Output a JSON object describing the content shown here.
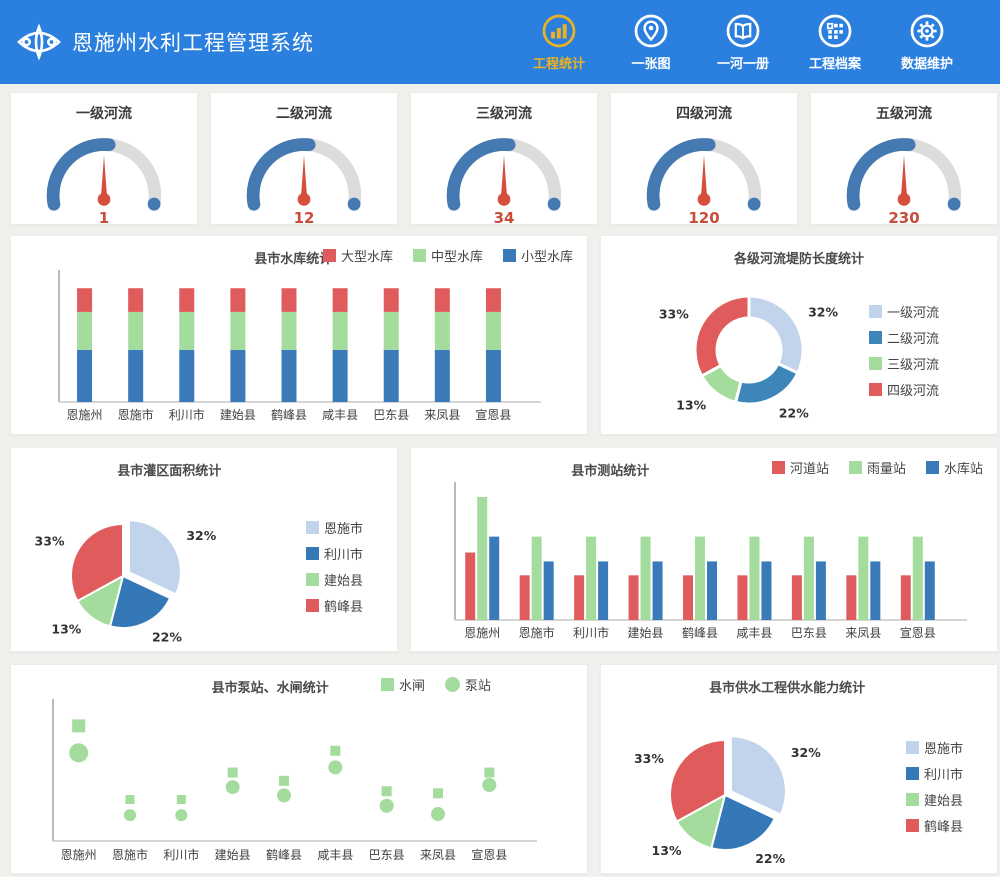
{
  "header": {
    "title": "恩施州水利工程管理系统",
    "nav": [
      {
        "label": "工程统计",
        "icon": "bar-chart-icon",
        "active": true
      },
      {
        "label": "一张图",
        "icon": "map-pin-icon",
        "active": false
      },
      {
        "label": "一河一册",
        "icon": "book-icon",
        "active": false
      },
      {
        "label": "工程档案",
        "icon": "archive-grid-icon",
        "active": false
      },
      {
        "label": "数据维护",
        "icon": "gear-icon",
        "active": false
      }
    ]
  },
  "colors": {
    "header_blue": "#2b80df",
    "active_gold": "#ecb21f",
    "red": "#e05c5c",
    "green": "#a3dc9c",
    "blue": "#3a7ab8",
    "light_blue": "#c1d4ec",
    "donut_blue": "#3e86ba",
    "gauge_blue": "#4479b2",
    "gauge_gray": "#dcdcdc",
    "needle_red": "#d5503c",
    "value_red": "#c94d39"
  },
  "gauges": {
    "fill_pct": 53,
    "items": [
      {
        "title": "一级河流",
        "value": "1"
      },
      {
        "title": "二级河流",
        "value": "12"
      },
      {
        "title": "三级河流",
        "value": "34"
      },
      {
        "title": "四级河流",
        "value": "120"
      },
      {
        "title": "五级河流",
        "value": "230"
      }
    ]
  },
  "chart_data": [
    {
      "type": "bar",
      "stacked": true,
      "title": "县市水库统计",
      "categories": [
        "恩施州",
        "恩施市",
        "利川市",
        "建始县",
        "鹤峰县",
        "咸丰县",
        "巴东县",
        "来凤县",
        "宣恩县"
      ],
      "series": [
        {
          "name": "大型水库",
          "color": "#e05c5c",
          "values": [
            5,
            5,
            5,
            5,
            5,
            5,
            5,
            5,
            5
          ]
        },
        {
          "name": "中型水库",
          "color": "#a3dc9c",
          "values": [
            8,
            8,
            8,
            8,
            8,
            8,
            8,
            8,
            8
          ]
        },
        {
          "name": "小型水库",
          "color": "#3a7ab8",
          "values": [
            11,
            11,
            11,
            11,
            11,
            11,
            11,
            11,
            11
          ]
        }
      ],
      "ylim": [
        0,
        27
      ],
      "legend_position": "top-right",
      "grid": false
    },
    {
      "type": "pie",
      "donut": true,
      "title": "各级河流堤防长度统计",
      "slices": [
        {
          "label": "一级河流",
          "pct": 32,
          "color": "#c1d4ec"
        },
        {
          "label": "二级河流",
          "pct": 22,
          "color": "#3e86ba"
        },
        {
          "label": "三级河流",
          "pct": 13,
          "color": "#a3dc9c"
        },
        {
          "label": "四级河流",
          "pct": 33,
          "color": "#e05c5c"
        }
      ],
      "legend_position": "right"
    },
    {
      "type": "pie",
      "donut": false,
      "title": "县市灌区面积统计",
      "slices": [
        {
          "label": "恩施市",
          "pct": 32,
          "color": "#c1d4ec",
          "explode": true
        },
        {
          "label": "利川市",
          "pct": 22,
          "color": "#3578b8"
        },
        {
          "label": "建始县",
          "pct": 13,
          "color": "#a3dc9c"
        },
        {
          "label": "鹤峰县",
          "pct": 33,
          "color": "#e05c5c"
        }
      ],
      "legend_position": "right"
    },
    {
      "type": "bar",
      "stacked": false,
      "title": "县市测站统计",
      "categories": [
        "恩施州",
        "恩施市",
        "利川市",
        "建始县",
        "鹤峰县",
        "咸丰县",
        "巴东县",
        "来凤县",
        "宣恩县"
      ],
      "series": [
        {
          "name": "河道站",
          "color": "#e05c5c",
          "values": [
            68,
            45,
            45,
            45,
            45,
            45,
            45,
            45,
            45
          ]
        },
        {
          "name": "雨量站",
          "color": "#a3dc9c",
          "values": [
            124,
            84,
            84,
            84,
            84,
            84,
            84,
            84,
            84
          ]
        },
        {
          "name": "水库站",
          "color": "#3a7ab8",
          "values": [
            84,
            59,
            59,
            59,
            59,
            59,
            59,
            59,
            59
          ]
        }
      ],
      "ylim": [
        0,
        135
      ],
      "legend_position": "top-right",
      "grid": false
    },
    {
      "type": "scatter",
      "title": "县市泵站、水闸统计",
      "categories": [
        "恩施州",
        "恩施市",
        "利川市",
        "建始县",
        "鹤峰县",
        "咸丰县",
        "巴东县",
        "来凤县",
        "宣恩县"
      ],
      "color": "#a3dc9c",
      "series": [
        {
          "name": "水闸",
          "marker": "square",
          "values": [
            111,
            40,
            40,
            66,
            58,
            87,
            48,
            46,
            66
          ],
          "sizes": [
            13,
            9,
            9,
            10,
            10,
            10,
            10,
            10,
            10
          ]
        },
        {
          "name": "泵站",
          "marker": "circle",
          "values": [
            85,
            25,
            25,
            52,
            44,
            71,
            34,
            26,
            54
          ],
          "sizes": [
            19,
            12,
            12,
            14,
            14,
            14,
            14,
            14,
            14
          ]
        }
      ],
      "ylim": [
        0,
        135
      ],
      "legend_position": "top-right"
    },
    {
      "type": "pie",
      "donut": false,
      "title": "县市供水工程供水能力统计",
      "slices": [
        {
          "label": "恩施市",
          "pct": 32,
          "color": "#c1d4ec",
          "explode": true
        },
        {
          "label": "利川市",
          "pct": 22,
          "color": "#3578b8"
        },
        {
          "label": "建始县",
          "pct": 13,
          "color": "#a3dc9c"
        },
        {
          "label": "鹤峰县",
          "pct": 33,
          "color": "#e05c5c"
        }
      ],
      "legend_position": "right"
    }
  ]
}
